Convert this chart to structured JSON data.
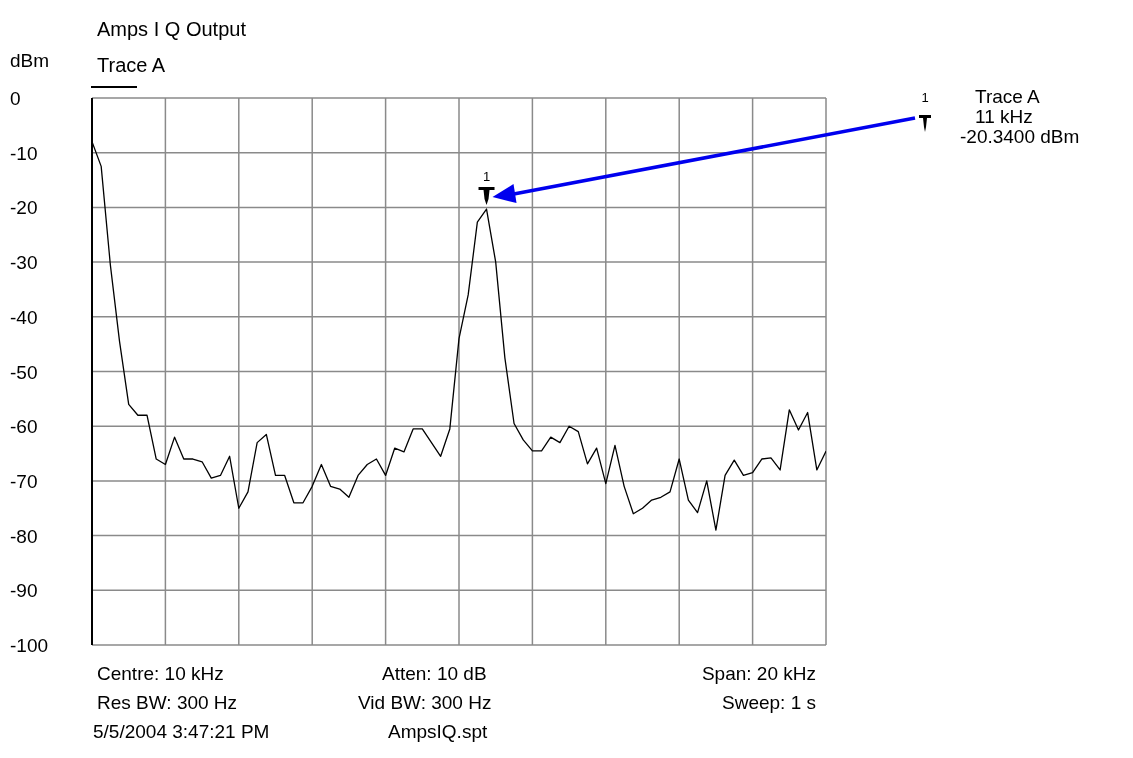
{
  "chart_data": {
    "type": "line",
    "title": "Amps I Q Output",
    "ylabel": "dBm",
    "categories": [
      null,
      null,
      null,
      null,
      null,
      null,
      null,
      null,
      null,
      null,
      null,
      null,
      null,
      null,
      null,
      null,
      null,
      null,
      null,
      null,
      null,
      null,
      null,
      null,
      null,
      null,
      null,
      null,
      null,
      null,
      null,
      null,
      null,
      null,
      null,
      null,
      null,
      null,
      null,
      null,
      null,
      null,
      null,
      null,
      null,
      null,
      null,
      null,
      null,
      null,
      null,
      null,
      null,
      null,
      null,
      null,
      null,
      null,
      null,
      null,
      null,
      null,
      null,
      null,
      null,
      null,
      null,
      null,
      null,
      null,
      null,
      null,
      null,
      null,
      null,
      null,
      null,
      null,
      null,
      null,
      null
    ],
    "series": [
      {
        "name": "Trace A",
        "color": "#000000",
        "values": [
          -8,
          -12.5,
          -30.5,
          -44.5,
          -56,
          -58,
          -58,
          -66,
          -67,
          -62,
          -66,
          -66,
          -66.5,
          -69.5,
          -69,
          -65.5,
          -75,
          -72,
          -63,
          -61.5,
          -69,
          -69,
          -74,
          -74,
          -71,
          -67,
          -71,
          -71.5,
          -73,
          -69,
          -67,
          -66,
          -69,
          -64,
          -64.7,
          -60.5,
          -60.5,
          -63,
          -65.5,
          -60.5,
          -44,
          -36,
          -22.7,
          -20.3,
          -30,
          -47.5,
          -59.5,
          -62.5,
          -64.5,
          -64.5,
          -62,
          -63,
          -60,
          -61,
          -66.9,
          -64,
          -70.5,
          -63.5,
          -71,
          -76,
          -75,
          -73.5,
          -73,
          -72,
          -66,
          -73.5,
          -75.8,
          -70,
          -79,
          -69,
          -66.2,
          -69,
          -68.5,
          -66,
          -65.8,
          -68,
          -57,
          -60.7,
          -57.5,
          -68,
          -64.6
        ]
      }
    ],
    "ylim": [
      -100,
      0
    ],
    "yticks": [
      0,
      -10,
      -20,
      -30,
      -40,
      -50,
      -60,
      -70,
      -80,
      -90,
      -100
    ],
    "tick_labels": "y",
    "grid": true,
    "legend": "top left",
    "marker": "none",
    "line_style": "solid",
    "annotations": [
      "1",
      "1",
      "Trace A\n11 kHz\n-20.3400 dBm",
      "Centre: 10 kHz",
      "Atten: 10 dB",
      "Span: 20 kHz",
      "Res BW: 300 Hz",
      "Vid BW: 300 Hz",
      "Sweep: 1 s",
      "5/5/2004 3:47:21 PM",
      "AmpsIQ.spt"
    ]
  }
}
